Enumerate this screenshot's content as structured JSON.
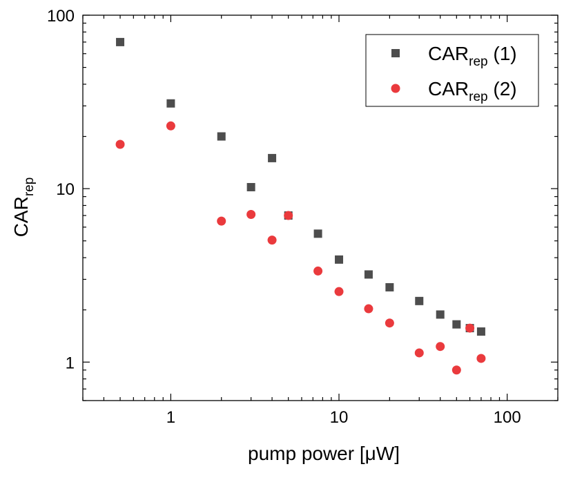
{
  "chart_data": {
    "type": "scatter",
    "title": "",
    "xlabel": "pump power [μW]",
    "ylabel_main": "CAR",
    "ylabel_sub": "rep",
    "xscale": "log",
    "yscale": "log",
    "xlim": [
      0.3,
      200
    ],
    "ylim": [
      0.6,
      100
    ],
    "xticks": [
      1,
      10,
      100
    ],
    "xtick_labels": [
      "1",
      "10",
      "100"
    ],
    "yticks": [
      1,
      10,
      100
    ],
    "ytick_labels": [
      "1",
      "10",
      "100"
    ],
    "legend_position": "top-right",
    "series": [
      {
        "name": "CARrep (1)",
        "label_main": "CAR",
        "label_sub": "rep",
        "label_suffix": " (1)",
        "marker": "square",
        "color": "#4d4d4d",
        "x": [
          0.5,
          1,
          2,
          3,
          4,
          5,
          7.5,
          10,
          15,
          20,
          30,
          40,
          50,
          60,
          70
        ],
        "y": [
          70,
          31,
          20,
          10.2,
          15,
          7,
          5.5,
          3.9,
          3.2,
          2.7,
          2.25,
          1.88,
          1.65,
          1.57,
          1.5
        ]
      },
      {
        "name": "CARrep (2)",
        "label_main": "CAR",
        "label_sub": "rep",
        "label_suffix": " (2)",
        "marker": "circle",
        "color": "#ea3a3d",
        "x": [
          0.5,
          1,
          2,
          3,
          4,
          5,
          7.5,
          10,
          15,
          20,
          30,
          40,
          50,
          60,
          70
        ],
        "y": [
          18,
          23,
          6.5,
          7.1,
          5.05,
          7,
          3.35,
          2.55,
          2.03,
          1.68,
          1.13,
          1.23,
          0.9,
          1.57,
          1.05
        ]
      }
    ]
  }
}
